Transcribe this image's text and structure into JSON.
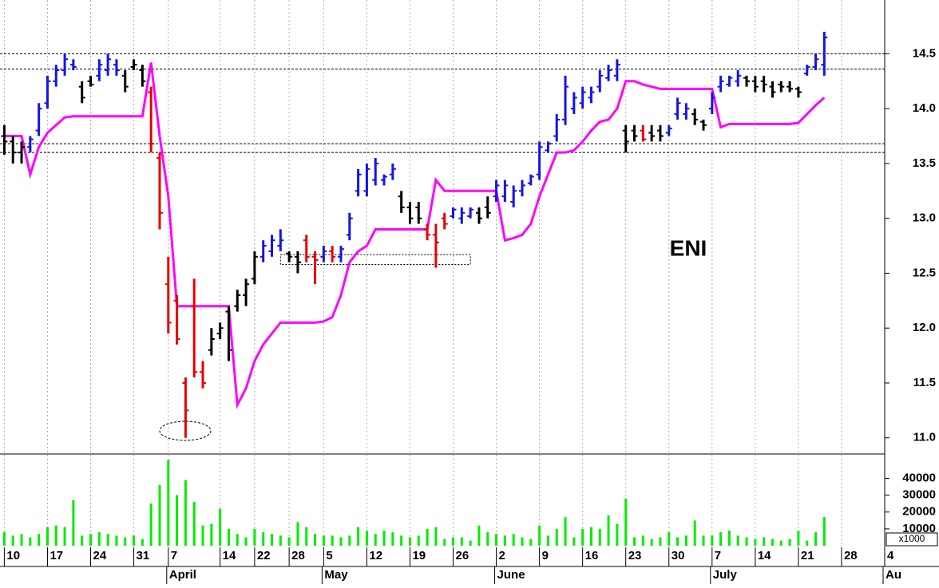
{
  "chart_data": {
    "type": "ohlc",
    "title": "ENI",
    "x": [
      0,
      1,
      2,
      3,
      4,
      5,
      6,
      7,
      8,
      9,
      10,
      11,
      12,
      13,
      14,
      15,
      16,
      17,
      18,
      19,
      20,
      21,
      22,
      23,
      24,
      25,
      26,
      27,
      28,
      29,
      30,
      31,
      32,
      33,
      34,
      35,
      36,
      37,
      38,
      39,
      40,
      41,
      42,
      43,
      44,
      45,
      46,
      47,
      48,
      49,
      50,
      51,
      52,
      53,
      54,
      55,
      56,
      57,
      58,
      59,
      60,
      61,
      62,
      63,
      64,
      65,
      66,
      67,
      68,
      69,
      70,
      71,
      72,
      73,
      74,
      75,
      76,
      77,
      78,
      79,
      80,
      81,
      82,
      83,
      84,
      85,
      86,
      87,
      88,
      89,
      90,
      91,
      92,
      93,
      94,
      95
    ],
    "open": [
      13.75,
      13.7,
      13.6,
      13.65,
      13.8,
      14.05,
      14.25,
      14.35,
      14.4,
      14.2,
      14.25,
      14.3,
      14.35,
      14.4,
      14.3,
      14.38,
      14.35,
      14.15,
      13.55,
      12.4,
      12.25,
      11.5,
      12.2,
      11.6,
      11.8,
      11.95,
      12.15,
      12.2,
      12.3,
      12.45,
      12.65,
      12.7,
      12.75,
      12.68,
      12.65,
      12.8,
      12.65,
      12.65,
      12.7,
      12.65,
      12.85,
      13.25,
      13.25,
      13.35,
      13.35,
      13.4,
      13.2,
      13.1,
      13.1,
      12.9,
      12.85,
      13.0,
      13.02,
      13.0,
      13.02,
      13.05,
      13.1,
      13.2,
      13.2,
      13.15,
      13.25,
      13.32,
      13.4,
      13.62,
      13.75,
      13.9,
      14.0,
      14.05,
      14.1,
      14.2,
      14.28,
      14.3,
      13.8,
      13.8,
      13.8,
      13.78,
      13.8,
      13.78,
      13.95,
      13.95,
      13.95,
      13.88,
      14.0,
      14.2,
      14.22,
      14.25,
      14.28,
      14.25,
      14.25,
      14.2,
      14.22,
      14.2,
      14.18,
      14.32,
      14.38,
      14.4
    ],
    "high": [
      13.85,
      13.75,
      13.7,
      13.75,
      14.05,
      14.3,
      14.4,
      14.5,
      14.45,
      14.25,
      14.3,
      14.45,
      14.5,
      14.45,
      14.35,
      14.45,
      14.4,
      14.2,
      13.6,
      12.65,
      12.3,
      11.55,
      12.45,
      11.7,
      12.0,
      12.05,
      12.2,
      12.35,
      12.45,
      12.7,
      12.8,
      12.85,
      12.9,
      12.7,
      12.7,
      12.85,
      12.7,
      12.75,
      12.75,
      12.75,
      13.05,
      13.45,
      13.5,
      13.55,
      13.4,
      13.5,
      13.25,
      13.15,
      13.15,
      12.95,
      12.95,
      13.05,
      13.1,
      13.1,
      13.1,
      13.1,
      13.2,
      13.35,
      13.35,
      13.3,
      13.35,
      13.4,
      13.7,
      13.7,
      13.95,
      14.3,
      14.15,
      14.2,
      14.2,
      14.35,
      14.4,
      14.45,
      13.85,
      13.85,
      13.85,
      13.85,
      13.85,
      13.85,
      14.1,
      14.05,
      14.0,
      13.9,
      14.15,
      14.3,
      14.3,
      14.35,
      14.3,
      14.3,
      14.3,
      14.25,
      14.25,
      14.25,
      14.2,
      14.4,
      14.5,
      14.7
    ],
    "low": [
      13.58,
      13.5,
      13.5,
      13.6,
      13.75,
      14.0,
      14.2,
      14.3,
      14.35,
      14.05,
      14.2,
      14.25,
      14.3,
      14.3,
      14.15,
      14.35,
      14.2,
      13.6,
      12.9,
      11.95,
      11.85,
      11.0,
      11.55,
      11.45,
      11.75,
      11.9,
      11.7,
      12.15,
      12.2,
      12.4,
      12.6,
      12.65,
      12.7,
      12.6,
      12.5,
      12.6,
      12.4,
      12.6,
      12.6,
      12.6,
      12.8,
      13.2,
      13.2,
      13.3,
      13.3,
      13.35,
      13.05,
      12.95,
      12.95,
      12.8,
      12.55,
      12.9,
      13.0,
      12.95,
      13.0,
      12.95,
      13.0,
      13.15,
      13.15,
      13.1,
      13.2,
      13.3,
      13.35,
      13.6,
      13.7,
      13.85,
      13.95,
      14.0,
      14.05,
      14.15,
      14.25,
      14.25,
      13.6,
      13.7,
      13.7,
      13.7,
      13.7,
      13.75,
      13.9,
      13.9,
      13.85,
      13.8,
      13.95,
      14.15,
      14.2,
      14.2,
      14.2,
      14.15,
      14.15,
      14.1,
      14.15,
      14.15,
      14.1,
      14.3,
      14.35,
      14.3
    ],
    "close": [
      13.7,
      13.6,
      13.65,
      13.72,
      14.0,
      14.25,
      14.35,
      14.45,
      14.38,
      14.1,
      14.22,
      14.4,
      14.45,
      14.35,
      14.2,
      14.4,
      14.25,
      13.68,
      13.05,
      12.05,
      11.9,
      11.25,
      11.6,
      11.5,
      11.9,
      12.0,
      11.8,
      12.3,
      12.4,
      12.65,
      12.75,
      12.8,
      12.8,
      12.65,
      12.6,
      12.65,
      12.62,
      12.7,
      12.65,
      12.72,
      13.0,
      13.4,
      13.45,
      13.5,
      13.38,
      13.45,
      13.1,
      13.0,
      13.0,
      12.85,
      12.78,
      12.95,
      13.08,
      13.05,
      13.08,
      13.0,
      13.05,
      13.3,
      13.3,
      13.25,
      13.3,
      13.38,
      13.65,
      13.68,
      13.9,
      14.2,
      14.1,
      14.15,
      14.15,
      14.3,
      14.35,
      14.4,
      13.7,
      13.75,
      13.72,
      13.75,
      13.75,
      13.82,
      14.05,
      14.0,
      13.9,
      13.85,
      14.1,
      14.25,
      14.28,
      14.3,
      14.25,
      14.2,
      14.22,
      14.15,
      14.2,
      14.18,
      14.15,
      14.38,
      14.45,
      14.65
    ],
    "bar_colors": "kkkbbbbbbkkbbbkkkrrrrrrrkkkkkkbbbkkrrbrbbbbbbbkkkrrrbbbkkbbbbbbbbbbbbbbbkkrkkbbbkkbbbbkkkkkkkbbb",
    "palette": {
      "b": "#1414e6",
      "k": "#000000",
      "r": "#e60000"
    },
    "stop_line": {
      "color": "#ff00ff",
      "values": [
        13.75,
        13.75,
        13.75,
        13.4,
        13.65,
        13.78,
        13.85,
        13.92,
        13.93,
        13.93,
        13.93,
        13.93,
        13.93,
        13.93,
        13.93,
        13.93,
        13.93,
        14.42,
        13.75,
        13.2,
        12.2,
        12.2,
        12.2,
        12.2,
        12.2,
        12.2,
        12.2,
        11.3,
        11.45,
        11.7,
        11.85,
        11.95,
        12.05,
        12.05,
        12.05,
        12.05,
        12.05,
        12.06,
        12.1,
        12.3,
        12.6,
        12.7,
        12.75,
        12.9,
        12.9,
        12.9,
        12.9,
        12.9,
        12.9,
        12.9,
        13.35,
        13.25,
        13.25,
        13.25,
        13.25,
        13.25,
        13.25,
        13.25,
        12.8,
        12.82,
        12.85,
        12.95,
        13.2,
        13.4,
        13.6,
        13.6,
        13.62,
        13.7,
        13.8,
        13.88,
        13.9,
        14.0,
        14.25,
        14.25,
        14.22,
        14.2,
        14.18,
        14.18,
        14.18,
        14.18,
        14.18,
        14.18,
        14.18,
        13.83,
        13.86,
        13.86,
        13.86,
        13.86,
        13.86,
        13.86,
        13.86,
        13.86,
        13.87,
        13.95,
        14.03,
        14.1
      ]
    },
    "volume": {
      "color": "#00ee00",
      "values": [
        8000,
        6000,
        7000,
        5000,
        7000,
        11000,
        12000,
        11000,
        27000,
        6000,
        7000,
        8000,
        7000,
        6000,
        5000,
        6000,
        4000,
        25000,
        36000,
        51000,
        30000,
        39000,
        26000,
        12000,
        13000,
        22000,
        10000,
        7000,
        5000,
        10000,
        8000,
        7000,
        6000,
        5000,
        14000,
        11000,
        7000,
        6000,
        6000,
        5000,
        6000,
        11000,
        9000,
        7000,
        9000,
        8000,
        6000,
        5000,
        6000,
        10000,
        11000,
        4000,
        5000,
        5000,
        3000,
        12000,
        8000,
        7000,
        6000,
        7000,
        5000,
        4000,
        12000,
        6000,
        10000,
        17000,
        5000,
        10000,
        11000,
        10000,
        18000,
        13000,
        28000,
        5000,
        6000,
        4000,
        5000,
        8000,
        5000,
        6000,
        15000,
        6000,
        6000,
        8000,
        9000,
        6000,
        5000,
        4000,
        5000,
        4000,
        3000,
        4000,
        9000,
        3000,
        8000,
        17000
      ],
      "ylim": [
        0,
        54000
      ],
      "yticks": [
        10000,
        20000,
        30000,
        40000
      ],
      "unit_label": "x1000"
    },
    "levels": [
      14.5,
      14.36,
      13.68,
      13.6
    ],
    "zone": {
      "x": [
        32,
        54
      ],
      "y": [
        12.58,
        12.67
      ]
    },
    "xlim": [
      -0.5,
      102
    ],
    "ylim": [
      10.86,
      14.99
    ],
    "yticks": [
      {
        "value": 11,
        "label": "11.0"
      },
      11.5,
      {
        "value": 12,
        "label": "12.0"
      },
      12.5,
      {
        "value": 13,
        "label": "13.0"
      },
      13.5,
      {
        "value": 14,
        "label": "14.0"
      },
      14.5
    ],
    "xticks": [
      {
        "value": 0,
        "label": "10"
      },
      {
        "value": 5,
        "label": "17"
      },
      {
        "value": 10,
        "label": "24"
      },
      {
        "value": 15,
        "label": "31"
      },
      {
        "value": 19,
        "label": "7"
      },
      {
        "value": 25,
        "label": "14"
      },
      {
        "value": 29,
        "label": "22"
      },
      {
        "value": 33,
        "label": "28"
      },
      {
        "value": 37,
        "label": "5"
      },
      {
        "value": 42,
        "label": "12"
      },
      {
        "value": 47,
        "label": "19"
      },
      {
        "value": 52,
        "label": "26"
      },
      {
        "value": 57,
        "label": "2"
      },
      {
        "value": 62,
        "label": "9"
      },
      {
        "value": 67,
        "label": "16"
      },
      {
        "value": 72,
        "label": "23"
      },
      {
        "value": 77,
        "label": "30"
      },
      {
        "value": 82,
        "label": "7"
      },
      {
        "value": 87,
        "label": "14"
      },
      {
        "value": 92,
        "label": "21"
      },
      {
        "value": 97,
        "label": "28"
      },
      {
        "value": 102,
        "label": "4"
      }
    ],
    "months": [
      {
        "value": 19,
        "label": "April"
      },
      {
        "value": 37,
        "label": "May"
      },
      {
        "value": 57,
        "label": "June"
      },
      {
        "value": 82,
        "label": "July"
      },
      {
        "value": 102,
        "label": "Au"
      }
    ],
    "grid": true
  }
}
